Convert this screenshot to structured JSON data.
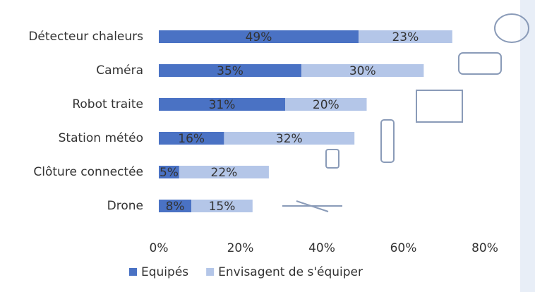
{
  "chart_data": {
    "type": "bar",
    "orientation": "horizontal",
    "stacked": true,
    "categories": [
      "Détecteur chaleurs",
      "Caméra",
      "Robot traite",
      "Station météo",
      "Clôture connectée",
      "Drone"
    ],
    "series": [
      {
        "name": "Equipés",
        "color": "#4a72c4",
        "values": [
          49,
          35,
          31,
          16,
          5,
          8
        ],
        "value_labels": [
          "49%",
          "35%",
          "31%",
          "16%",
          "5%",
          "8%"
        ]
      },
      {
        "name": "Envisagent de s'équiper",
        "color": "#b4c6e8",
        "values": [
          23,
          30,
          20,
          32,
          22,
          15
        ],
        "value_labels": [
          "23%",
          "30%",
          "20%",
          "32%",
          "22%",
          "15%"
        ]
      }
    ],
    "xlim": [
      0,
      80
    ],
    "xticks": [
      {
        "value": 0,
        "label": "0%"
      },
      {
        "value": 20,
        "label": "20%"
      },
      {
        "value": 40,
        "label": "40%"
      },
      {
        "value": 60,
        "label": "60%"
      },
      {
        "value": 80,
        "label": "80%"
      }
    ],
    "legend": "bottom"
  }
}
